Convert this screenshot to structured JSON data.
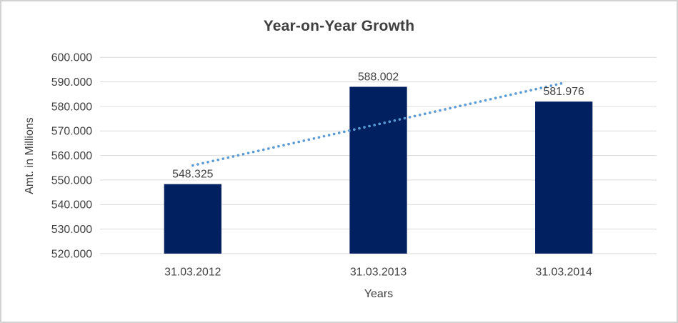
{
  "frame": {
    "background_color": "#ffffff",
    "border_color": "#d2d2d2"
  },
  "chart_data": {
    "type": "bar",
    "title": "Year-on-Year Growth",
    "xlabel": "Years",
    "ylabel": "Amt. in Millions",
    "categories": [
      "31.03.2012",
      "31.03.2013",
      "31.03.2014"
    ],
    "values": [
      548.325,
      588.002,
      581.976
    ],
    "data_labels": [
      "548.325",
      "588.002",
      "581.976"
    ],
    "ylim": [
      520,
      600
    ],
    "ytick_step": 10,
    "ytick_labels": [
      "520.000",
      "530.000",
      "540.000",
      "550.000",
      "560.000",
      "570.000",
      "580.000",
      "590.000",
      "600.000"
    ],
    "grid": true,
    "legend": false,
    "colors": {
      "bar": "#002060",
      "gridline": "#d9d9d9",
      "axis_line": "#d9d9d9",
      "text": "#404040",
      "trendline": "#5b9bd5"
    },
    "trendline": {
      "type": "linear",
      "style": "dotted"
    }
  }
}
